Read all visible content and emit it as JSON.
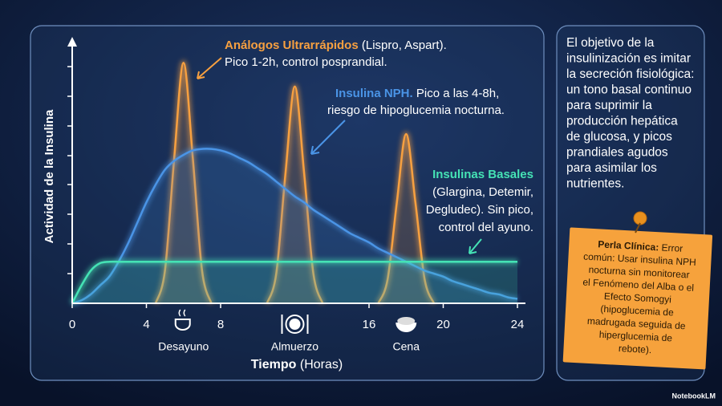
{
  "chart_data": {
    "type": "line",
    "y_label": "Actividad de la Insulina",
    "x_label": "Tiempo",
    "x_label_unit": "(Horas)",
    "xlim": [
      0,
      24
    ],
    "xticks": [
      0,
      4,
      8,
      16,
      20,
      24
    ],
    "ylim": [
      0,
      9
    ],
    "x": [
      0,
      0.5,
      1,
      1.5,
      2,
      2.5,
      3,
      3.5,
      4,
      4.5,
      5,
      5.5,
      6,
      6.5,
      7,
      7.5,
      8,
      8.5,
      9,
      9.5,
      10,
      10.5,
      11,
      11.5,
      12,
      12.5,
      13,
      13.5,
      14,
      14.5,
      15,
      15.5,
      16,
      16.5,
      17,
      17.5,
      18,
      18.5,
      19,
      19.5,
      20,
      20.5,
      21,
      21.5,
      22,
      22.5,
      23,
      23.5,
      24
    ],
    "series": [
      {
        "name": "Análogos Ultrarrápidos",
        "color": "#f7a040",
        "notes": [
          "(Lispro, Aspart).",
          "Pico 1-2h, control posprandial."
        ],
        "values": [
          null,
          null,
          null,
          null,
          null,
          null,
          null,
          null,
          null,
          0,
          1.1,
          4.9,
          8.1,
          4.9,
          1.1,
          0,
          null,
          null,
          null,
          null,
          null,
          0,
          1.0,
          4.4,
          7.3,
          4.4,
          1.0,
          0,
          null,
          null,
          null,
          null,
          null,
          0,
          0.8,
          3.4,
          5.7,
          3.4,
          0.8,
          0,
          null,
          null,
          null,
          null,
          null,
          null,
          null,
          null,
          null
        ]
      },
      {
        "name": "Insulina NPH.",
        "color": "#4a94e6",
        "notes": [
          "Pico a las 4-8h,",
          "riesgo de hipoglucemia nocturna."
        ],
        "values": [
          0,
          0.1,
          0.3,
          0.6,
          0.9,
          1.4,
          2.0,
          2.7,
          3.4,
          4.0,
          4.5,
          4.8,
          5.0,
          5.15,
          5.2,
          5.2,
          5.15,
          5.05,
          4.9,
          4.75,
          4.55,
          4.35,
          4.1,
          3.85,
          3.6,
          3.4,
          3.15,
          2.95,
          2.75,
          2.55,
          2.35,
          2.2,
          2.05,
          1.85,
          1.7,
          1.55,
          1.4,
          1.25,
          1.1,
          1.0,
          0.9,
          0.75,
          0.65,
          0.55,
          0.45,
          0.35,
          0.3,
          0.2,
          0.15
        ]
      },
      {
        "name": "Insulinas Basales",
        "color": "#45e3b5",
        "notes": [
          "(Glargina, Detemir,",
          "Degludec). Sin pico,",
          "control del ayuno."
        ],
        "values": [
          0,
          0.6,
          1.1,
          1.35,
          1.4,
          1.4,
          1.4,
          1.4,
          1.4,
          1.4,
          1.4,
          1.4,
          1.4,
          1.4,
          1.4,
          1.4,
          1.4,
          1.4,
          1.4,
          1.4,
          1.4,
          1.4,
          1.4,
          1.4,
          1.4,
          1.4,
          1.4,
          1.4,
          1.4,
          1.4,
          1.4,
          1.4,
          1.4,
          1.4,
          1.4,
          1.4,
          1.4,
          1.4,
          1.4,
          1.4,
          1.4,
          1.4,
          1.4,
          1.4,
          1.4,
          1.4,
          1.4,
          1.4,
          1.4
        ]
      }
    ],
    "meals": [
      {
        "label": "Desayuno",
        "x": 6
      },
      {
        "label": "Almuerzo",
        "x": 12
      },
      {
        "label": "Cena",
        "x": 18
      }
    ]
  },
  "side_panel": {
    "lines": [
      "El objetivo de la",
      "insulinización es imitar",
      "la secreción fisiológica:",
      "un tono basal continuo",
      "para suprimir la",
      "producción hepática",
      "de glucosa, y picos",
      "prandiales agudos",
      "para asimilar los",
      "nutrientes."
    ]
  },
  "note": {
    "title": "Perla Clínica:",
    "lines": [
      " Error",
      "común: Usar insulina NPH",
      "nocturna sin monitorear",
      "el Fenómeno del Alba o el",
      "Efecto Somogyi",
      "(hipoglucemia de",
      "madrugada seguida de",
      "hiperglucemia de",
      "rebote)."
    ]
  },
  "brand": "NotebookLM"
}
